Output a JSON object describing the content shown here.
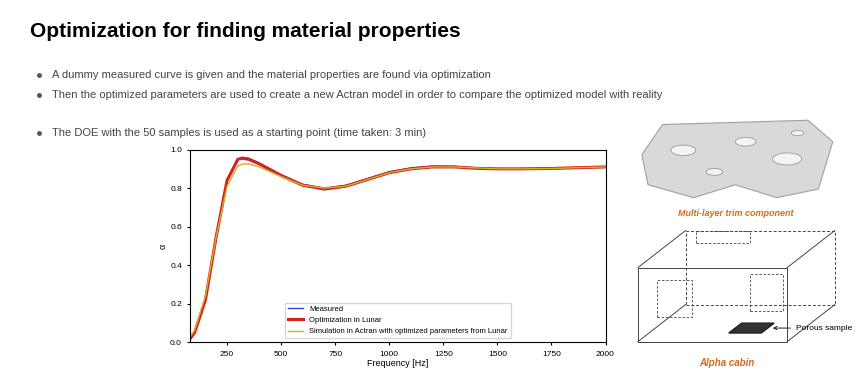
{
  "title": "Optimization for finding material properties",
  "bullets": [
    "A dummy measured curve is given and the material properties are found via optimization",
    "Then the optimized parameters are used to create a new Actran model in order to compare the optimized model with reality",
    "The DOE with the 50 samples is used as a starting point (time taken: 3 min)"
  ],
  "images": {
    "top_caption": "Multi-layer trim component",
    "bottom_caption": "Alpha cabin",
    "sample_label": "Porous sample"
  },
  "chart_data": {
    "type": "line",
    "x_label": "Frequency [Hz]",
    "y_label": "α",
    "x": [
      80,
      100,
      150,
      200,
      250,
      300,
      320,
      350,
      400,
      500,
      600,
      700,
      800,
      900,
      1000,
      1100,
      1200,
      1300,
      1400,
      1500,
      1600,
      1750,
      1900,
      2000
    ],
    "series": [
      {
        "name": "Measured",
        "color": "#3a3ad8",
        "values": [
          0.02,
          0.05,
          0.22,
          0.55,
          0.84,
          0.95,
          0.96,
          0.955,
          0.93,
          0.87,
          0.82,
          0.8,
          0.815,
          0.85,
          0.885,
          0.905,
          0.915,
          0.913,
          0.905,
          0.9,
          0.9,
          0.902,
          0.907,
          0.91
        ]
      },
      {
        "name": "Optimization in Lunar",
        "color": "#d62020",
        "values": [
          0.02,
          0.05,
          0.22,
          0.55,
          0.84,
          0.95,
          0.955,
          0.95,
          0.925,
          0.865,
          0.815,
          0.795,
          0.81,
          0.845,
          0.88,
          0.9,
          0.91,
          0.91,
          0.903,
          0.9,
          0.9,
          0.902,
          0.907,
          0.91
        ]
      },
      {
        "name": "Simulation in Actran with optimized parameters from Lunar",
        "color": "#d4b020",
        "values": [
          0.03,
          0.06,
          0.24,
          0.55,
          0.81,
          0.915,
          0.925,
          0.925,
          0.91,
          0.86,
          0.815,
          0.8,
          0.81,
          0.845,
          0.88,
          0.9,
          0.91,
          0.91,
          0.905,
          0.9,
          0.9,
          0.902,
          0.907,
          0.91
        ]
      }
    ],
    "xlim": [
      80,
      2000
    ],
    "xticks": [
      250,
      500,
      750,
      1000,
      1250,
      1500,
      1750,
      2000
    ],
    "ylim": [
      0,
      1.0
    ],
    "yticks": [
      {
        "value": 0,
        "label": "0.0"
      },
      {
        "value": 0.2,
        "label": "0.2"
      },
      {
        "value": 0.4,
        "label": "0.4"
      },
      {
        "value": 0.6,
        "label": "0.6"
      },
      {
        "value": 0.8,
        "label": "0.8"
      },
      {
        "value": 1.0,
        "label": "1.0"
      }
    ],
    "grid": false,
    "legend": "lower center"
  }
}
